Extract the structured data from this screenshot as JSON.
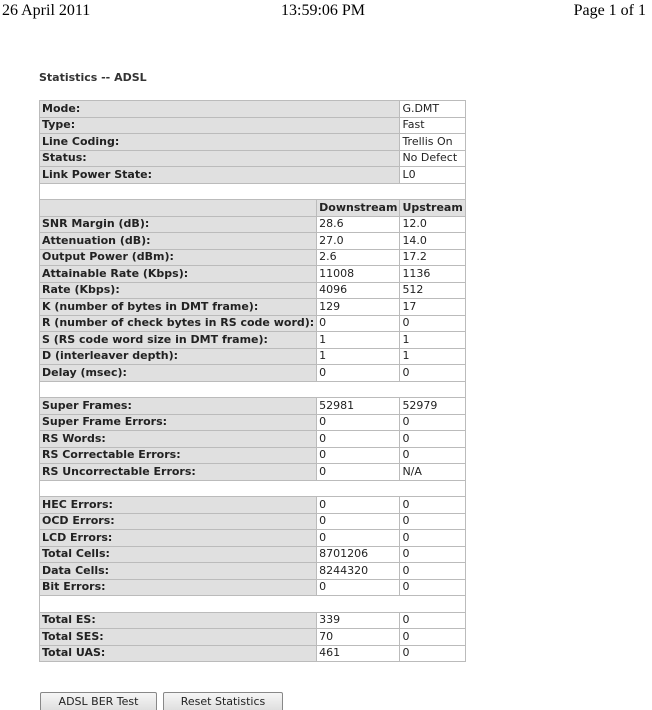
{
  "header": {
    "date": "26 April 2011",
    "time": "13:59:06 PM",
    "page": "Page 1 of 1"
  },
  "title": "Statistics -- ADSL",
  "info_rows": [
    [
      "Mode:",
      "G.DMT"
    ],
    [
      "Type:",
      "Fast"
    ],
    [
      "Line Coding:",
      "Trellis On"
    ],
    [
      "Status:",
      "No Defect"
    ],
    [
      "Link Power State:",
      "L0"
    ]
  ],
  "columns": [
    "Downstream",
    "Upstream"
  ],
  "sections": [
    [
      [
        "SNR Margin (dB):",
        "28.6",
        "12.0"
      ],
      [
        "Attenuation (dB):",
        "27.0",
        "14.0"
      ],
      [
        "Output Power (dBm):",
        "2.6",
        "17.2"
      ],
      [
        "Attainable Rate (Kbps):",
        "11008",
        "1136"
      ],
      [
        "Rate (Kbps):",
        "4096",
        "512"
      ],
      [
        "K (number of bytes in DMT frame):",
        "129",
        "17"
      ],
      [
        "R (number of check bytes in RS code word):",
        "0",
        "0"
      ],
      [
        "S (RS code word size in DMT frame):",
        "1",
        "1"
      ],
      [
        "D (interleaver depth):",
        "1",
        "1"
      ],
      [
        "Delay (msec):",
        "0",
        "0"
      ]
    ],
    [
      [
        "Super Frames:",
        "52981",
        "52979"
      ],
      [
        "Super Frame Errors:",
        "0",
        "0"
      ],
      [
        "RS Words:",
        "0",
        "0"
      ],
      [
        "RS Correctable Errors:",
        "0",
        "0"
      ],
      [
        "RS Uncorrectable Errors:",
        "0",
        "N/A"
      ]
    ],
    [
      [
        "HEC Errors:",
        "0",
        "0"
      ],
      [
        "OCD Errors:",
        "0",
        "0"
      ],
      [
        "LCD Errors:",
        "0",
        "0"
      ],
      [
        "Total Cells:",
        "8701206",
        "0"
      ],
      [
        "Data Cells:",
        "8244320",
        "0"
      ],
      [
        "Bit Errors:",
        "0",
        "0"
      ]
    ],
    [
      [
        "Total ES:",
        "339",
        "0"
      ],
      [
        "Total SES:",
        "70",
        "0"
      ],
      [
        "Total UAS:",
        "461",
        "0"
      ]
    ]
  ],
  "buttons": [
    "ADSL BER Test",
    "Reset Statistics"
  ]
}
